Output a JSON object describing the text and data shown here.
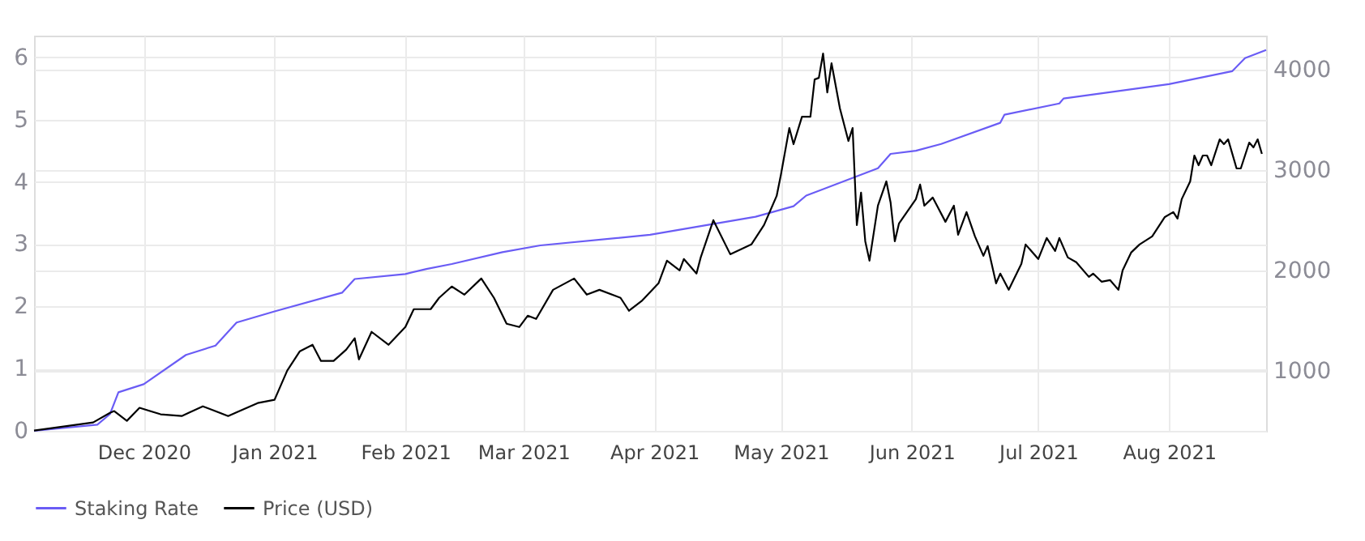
{
  "chart_data": {
    "type": "line",
    "xlim": [
      "2020-11-05",
      "2021-08-24"
    ],
    "xticks": [
      {
        "value": "2020-12-01",
        "label": "Dec 2020"
      },
      {
        "value": "2021-01-01",
        "label": "Jan 2021"
      },
      {
        "value": "2021-02-01",
        "label": "Feb 2021"
      },
      {
        "value": "2021-03-01",
        "label": "Mar 2021"
      },
      {
        "value": "2021-04-01",
        "label": "Apr 2021"
      },
      {
        "value": "2021-05-01",
        "label": "May 2021"
      },
      {
        "value": "2021-06-01",
        "label": "Jun 2021"
      },
      {
        "value": "2021-07-01",
        "label": "Jul 2021"
      },
      {
        "value": "2021-08-01",
        "label": "Aug 2021"
      }
    ],
    "ylim": [
      0,
      6.35
    ],
    "yticks": [
      0,
      1,
      2,
      3,
      4,
      5,
      6
    ],
    "y2lim": [
      400,
      4340
    ],
    "y2ticks": [
      1000,
      2000,
      3000,
      4000
    ],
    "grid": true,
    "legend": "bottom",
    "marker": "none",
    "line_style": "solid",
    "series": [
      {
        "name": "Staking Rate",
        "color": "#6a5cf5",
        "x": [
          "2020-11-05",
          "2020-11-20",
          "2020-11-23",
          "2020-11-25",
          "2020-12-01",
          "2020-12-11",
          "2020-12-18",
          "2020-12-23",
          "2021-01-01",
          "2021-01-17",
          "2021-01-20",
          "2021-02-01",
          "2021-02-06",
          "2021-02-12",
          "2021-02-24",
          "2021-03-05",
          "2021-03-31",
          "2021-04-25",
          "2021-05-04",
          "2021-05-07",
          "2021-05-24",
          "2021-05-27",
          "2021-06-02",
          "2021-06-08",
          "2021-06-22",
          "2021-06-23",
          "2021-07-06",
          "2021-07-07",
          "2021-08-01",
          "2021-08-16",
          "2021-08-19",
          "2021-08-24"
        ],
        "values": [
          0,
          0.1,
          0.27,
          0.62,
          0.75,
          1.22,
          1.37,
          1.74,
          1.92,
          2.22,
          2.44,
          2.52,
          2.6,
          2.68,
          2.87,
          2.98,
          3.15,
          3.44,
          3.61,
          3.78,
          4.22,
          4.45,
          4.5,
          4.61,
          4.95,
          5.08,
          5.26,
          5.34,
          5.57,
          5.78,
          5.99,
          6.12
        ]
      },
      {
        "name": "Price (USD)",
        "color": "#000000",
        "axis": "y2",
        "x": [
          "2020-11-05",
          "2020-11-19",
          "2020-11-23",
          "2020-11-24",
          "2020-11-27",
          "2020-11-30",
          "2020-12-05",
          "2020-12-10",
          "2020-12-15",
          "2020-12-21",
          "2020-12-28",
          "2021-01-01",
          "2021-01-04",
          "2021-01-07",
          "2021-01-10",
          "2021-01-12",
          "2021-01-15",
          "2021-01-18",
          "2021-01-20",
          "2021-01-21",
          "2021-01-24",
          "2021-01-28",
          "2021-02-01",
          "2021-02-03",
          "2021-02-07",
          "2021-02-09",
          "2021-02-12",
          "2021-02-15",
          "2021-02-19",
          "2021-02-22",
          "2021-02-25",
          "2021-02-28",
          "2021-03-02",
          "2021-03-04",
          "2021-03-08",
          "2021-03-13",
          "2021-03-16",
          "2021-03-19",
          "2021-03-24",
          "2021-03-26",
          "2021-03-29",
          "2021-04-02",
          "2021-04-04",
          "2021-04-07",
          "2021-04-08",
          "2021-04-11",
          "2021-04-12",
          "2021-04-15",
          "2021-04-19",
          "2021-04-24",
          "2021-04-27",
          "2021-04-30",
          "2021-05-01",
          "2021-05-03",
          "2021-05-04",
          "2021-05-06",
          "2021-05-08",
          "2021-05-09",
          "2021-05-10",
          "2021-05-11",
          "2021-05-12",
          "2021-05-13",
          "2021-05-15",
          "2021-05-17",
          "2021-05-18",
          "2021-05-19",
          "2021-05-20",
          "2021-05-21",
          "2021-05-22",
          "2021-05-24",
          "2021-05-26",
          "2021-05-27",
          "2021-05-28",
          "2021-05-29",
          "2021-06-02",
          "2021-06-03",
          "2021-06-04",
          "2021-06-06",
          "2021-06-09",
          "2021-06-11",
          "2021-06-12",
          "2021-06-14",
          "2021-06-16",
          "2021-06-18",
          "2021-06-19",
          "2021-06-21",
          "2021-06-22",
          "2021-06-24",
          "2021-06-27",
          "2021-06-28",
          "2021-07-01",
          "2021-07-03",
          "2021-07-05",
          "2021-07-06",
          "2021-07-08",
          "2021-07-10",
          "2021-07-13",
          "2021-07-14",
          "2021-07-16",
          "2021-07-18",
          "2021-07-20",
          "2021-07-21",
          "2021-07-23",
          "2021-07-25",
          "2021-07-28",
          "2021-07-31",
          "2021-08-02",
          "2021-08-03",
          "2021-08-04",
          "2021-08-06",
          "2021-08-07",
          "2021-08-08",
          "2021-08-09",
          "2021-08-10",
          "2021-08-11",
          "2021-08-13",
          "2021-08-14",
          "2021-08-15",
          "2021-08-17",
          "2021-08-18",
          "2021-08-20",
          "2021-08-21",
          "2021-08-22",
          "2021-08-23"
        ],
        "values": [
          403,
          484,
          580,
          597,
          500,
          630,
          565,
          548,
          645,
          548,
          677,
          710,
          1000,
          1194,
          1258,
          1097,
          1097,
          1210,
          1323,
          1113,
          1387,
          1258,
          1435,
          1613,
          1613,
          1726,
          1839,
          1758,
          1919,
          1726,
          1468,
          1435,
          1548,
          1516,
          1806,
          1919,
          1758,
          1806,
          1726,
          1597,
          1694,
          1871,
          2097,
          2000,
          2113,
          1968,
          2129,
          2500,
          2161,
          2258,
          2452,
          2742,
          2952,
          3419,
          3258,
          3532,
          3532,
          3903,
          3919,
          4161,
          3774,
          4065,
          3613,
          3290,
          3419,
          2452,
          2774,
          2290,
          2097,
          2645,
          2887,
          2677,
          2290,
          2468,
          2710,
          2855,
          2645,
          2726,
          2484,
          2645,
          2355,
          2581,
          2339,
          2145,
          2242,
          1871,
          1968,
          1806,
          2065,
          2258,
          2113,
          2323,
          2194,
          2323,
          2129,
          2081,
          1935,
          1968,
          1887,
          1903,
          1806,
          2000,
          2177,
          2258,
          2339,
          2532,
          2581,
          2516,
          2710,
          2887,
          3145,
          3048,
          3145,
          3145,
          3048,
          3306,
          3258,
          3306,
          3016,
          3016,
          3274,
          3226,
          3306,
          3161
        ]
      }
    ]
  }
}
